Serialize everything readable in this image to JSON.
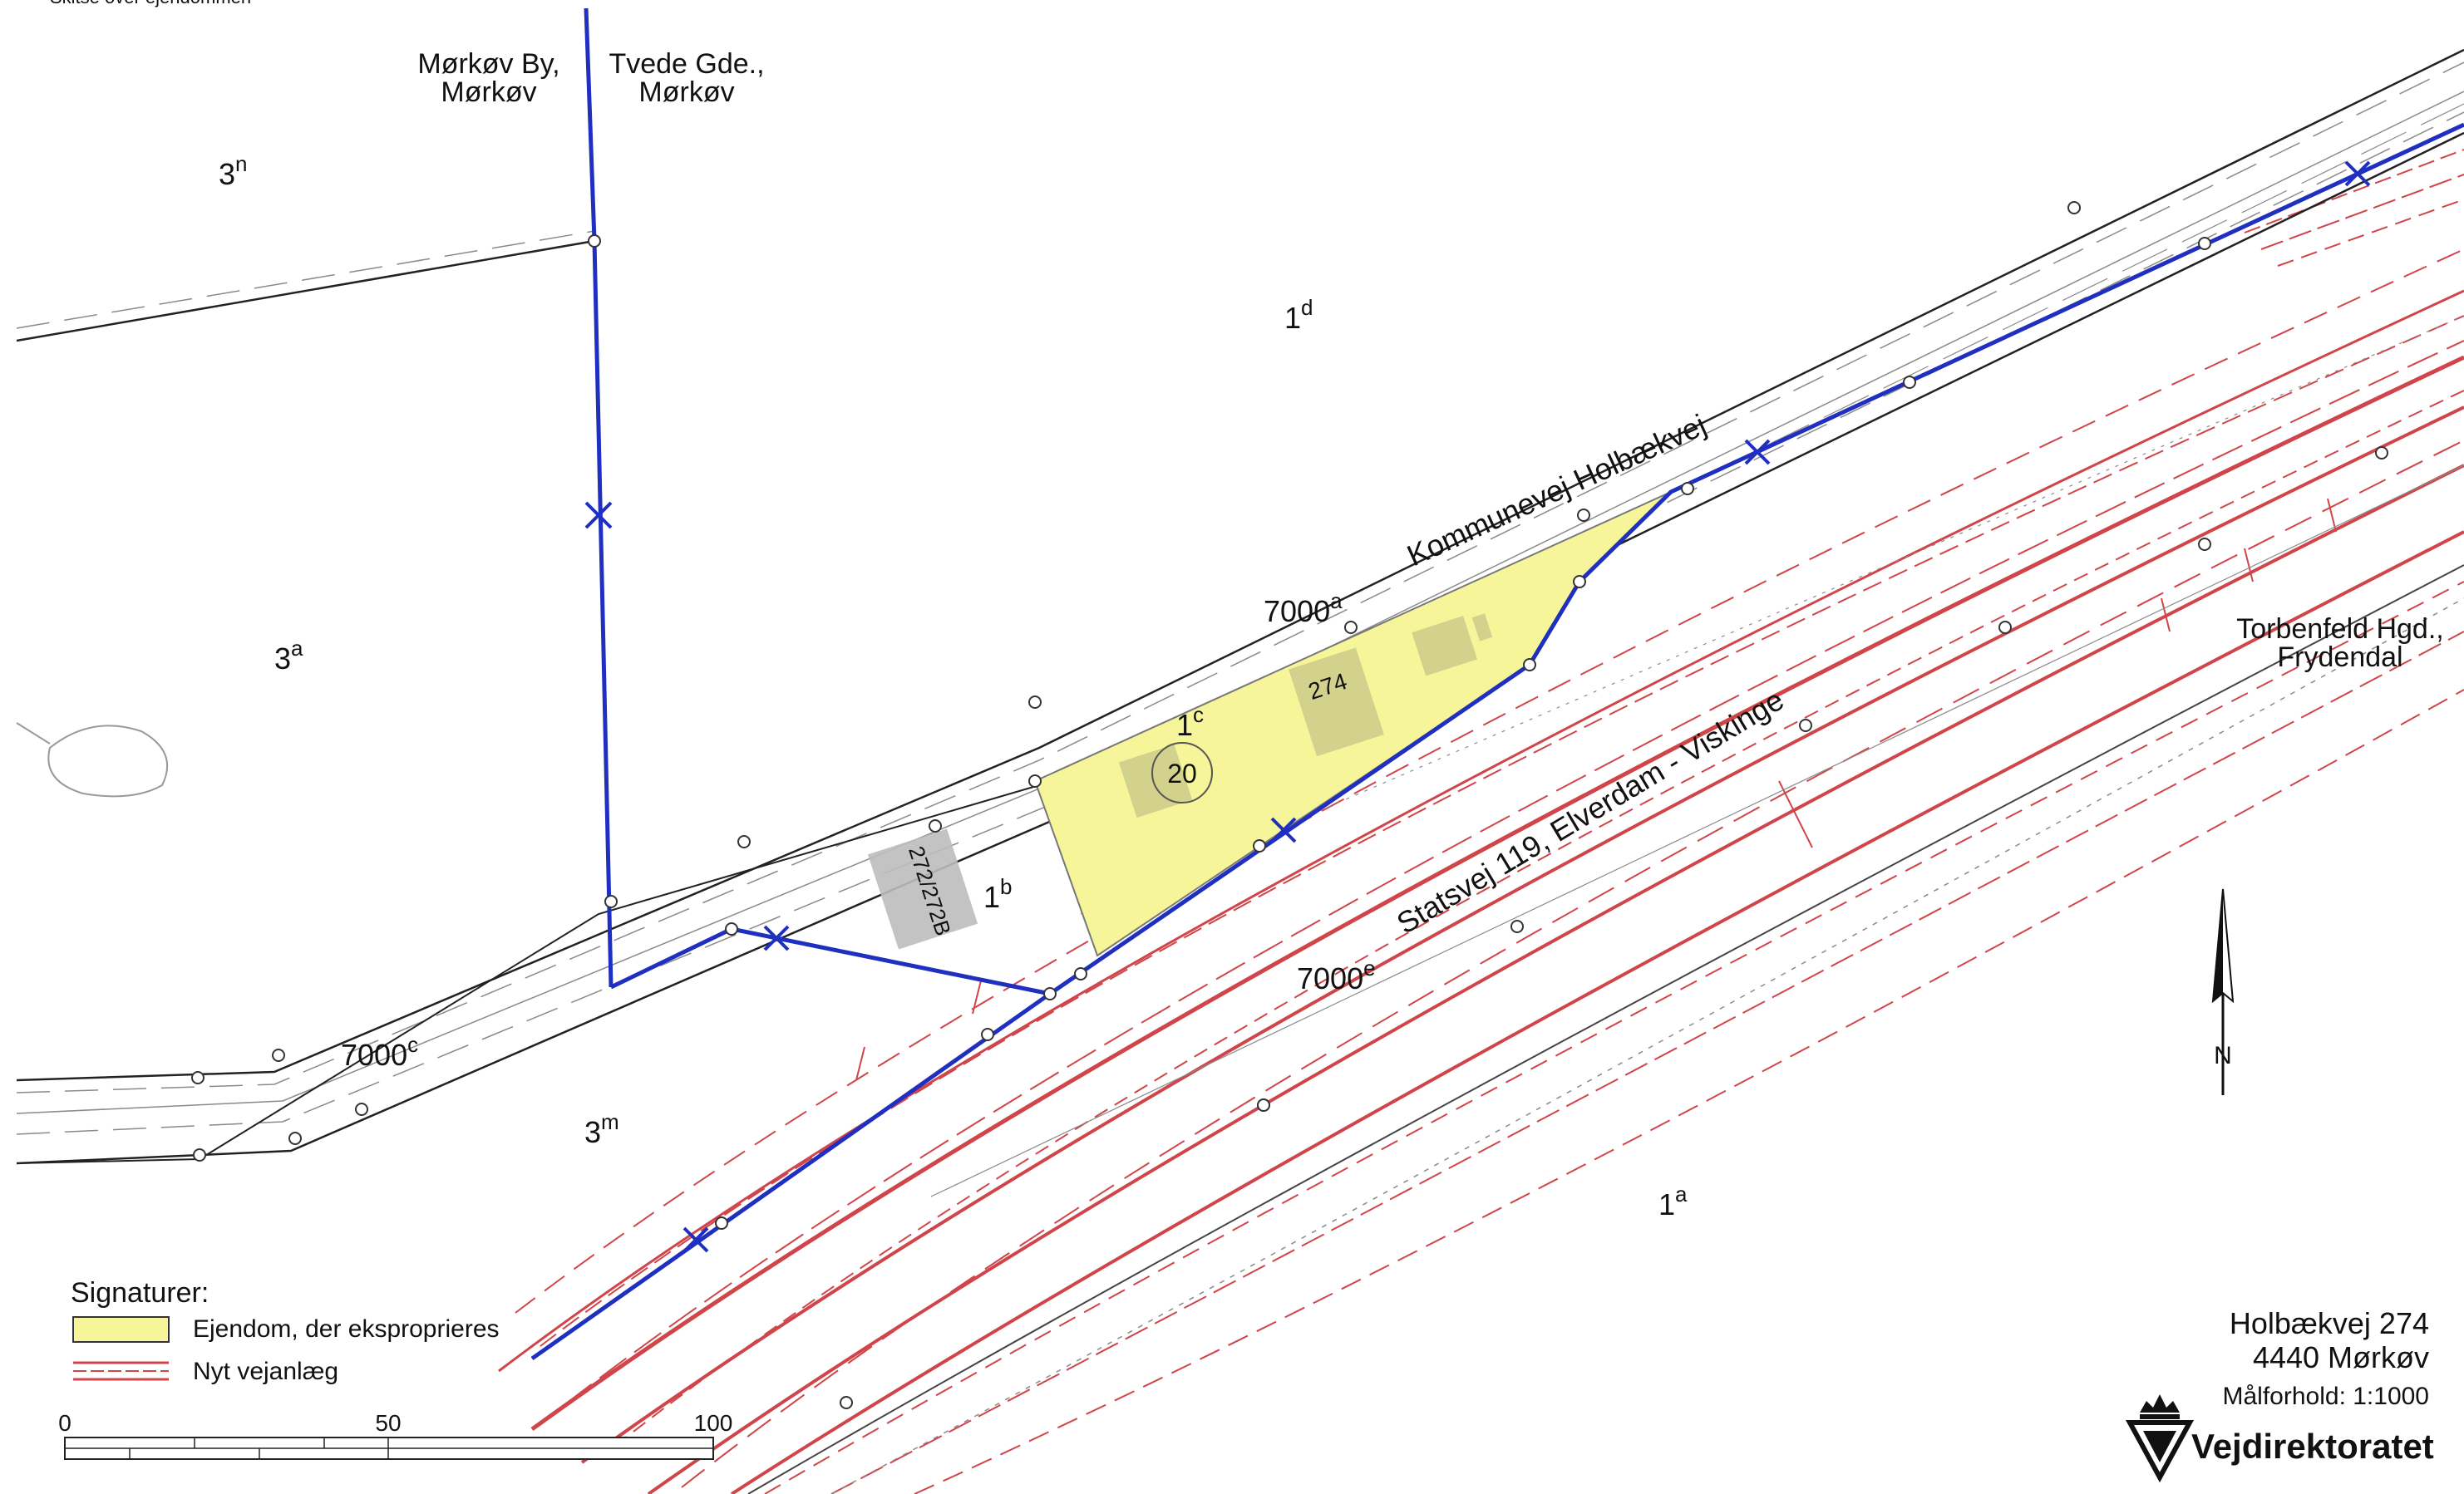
{
  "header_note": "Skitse over ejendommen",
  "owners": [
    {
      "line1": "Mørkøv By,",
      "line2": "Mørkøv"
    },
    {
      "line1": "Tvede Gde.,",
      "line2": "Mørkøv"
    },
    {
      "line1": "Torbenfeld Hgd.,",
      "line2": "Frydendal"
    }
  ],
  "parcels": [
    {
      "base": "3",
      "sup": "n"
    },
    {
      "base": "1",
      "sup": "d"
    },
    {
      "base": "3",
      "sup": "a"
    },
    {
      "base": "7000",
      "sup": "a"
    },
    {
      "base": "1",
      "sup": "c"
    },
    {
      "base": "1",
      "sup": "b"
    },
    {
      "base": "7000",
      "sup": "e"
    },
    {
      "base": "7000",
      "sup": "c"
    },
    {
      "base": "3",
      "sup": "m"
    },
    {
      "base": "1",
      "sup": "a"
    }
  ],
  "roads": {
    "kommunevej": "Kommunevej Holbækvej",
    "statsvej": "Statsvej 119, Elverdam - Viskinge"
  },
  "buildings": {
    "house_number": "274",
    "house_number_left": "272/272B",
    "circle_number": "20"
  },
  "legend": {
    "title": "Signaturer:",
    "items": [
      {
        "label": "Ejendom, der eksproprieres",
        "color": "#f7f59a"
      },
      {
        "label": "Nyt vejanlæg",
        "color": "#d0454a"
      }
    ]
  },
  "scale_bar": {
    "ticks": [
      "0",
      "50",
      "100"
    ]
  },
  "north": {
    "label": "N"
  },
  "info": {
    "address_line1": "Holbækvej 274",
    "address_line2": "4440 Mørkøv",
    "scale_text": "Målforhold: 1:1000"
  },
  "brand": {
    "name": "Vejdirektoratet"
  },
  "colors": {
    "boundary_blue": "#1f2fbf",
    "expropriation_yellow": "#f7f59a",
    "new_road_red": "#d0454a",
    "road_gray": "#8a8a8a",
    "building_gray": "#b9b9b9"
  }
}
